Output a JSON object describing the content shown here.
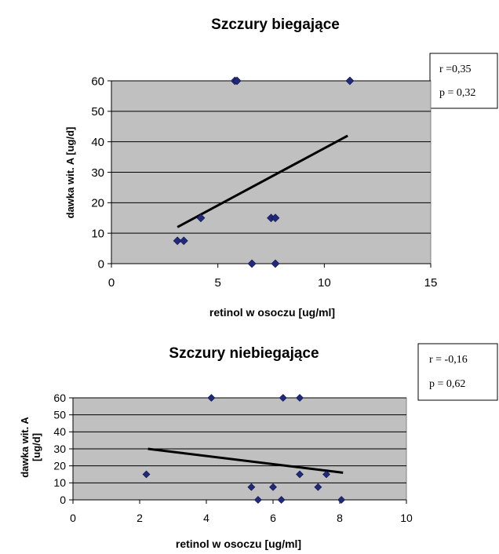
{
  "chart_data": [
    {
      "type": "scatter",
      "title": "Szczury biegające",
      "xlabel": "retinol w osoczu [ug/ml]",
      "ylabel": "dawka wit. A [ug/d]",
      "xlim": [
        0,
        15
      ],
      "ylim": [
        0,
        60
      ],
      "xticks": [
        0,
        5,
        10,
        15
      ],
      "yticks": [
        0,
        10,
        20,
        30,
        40,
        50,
        60
      ],
      "grid": "horizontal",
      "plot_background": "#c0c0c0",
      "marker_color": "#1f2a7a",
      "trend_color": "#000000",
      "points": [
        {
          "x": 5.8,
          "y": 60
        },
        {
          "x": 5.9,
          "y": 60
        },
        {
          "x": 11.2,
          "y": 60
        },
        {
          "x": 4.2,
          "y": 15
        },
        {
          "x": 7.5,
          "y": 15
        },
        {
          "x": 7.7,
          "y": 15
        },
        {
          "x": 3.1,
          "y": 7.5
        },
        {
          "x": 3.4,
          "y": 7.5
        },
        {
          "x": 6.6,
          "y": 0
        },
        {
          "x": 7.7,
          "y": 0
        }
      ],
      "trendline": [
        [
          3.1,
          12
        ],
        [
          11.1,
          42
        ]
      ],
      "stats": [
        "r =0,35",
        "p = 0,32"
      ]
    },
    {
      "type": "scatter",
      "title": "Szczury niebiegające",
      "xlabel": "retinol w osoczu [ug/ml]",
      "ylabel": "dawka wit. A [ug/d]",
      "ylabel_lines": [
        "dawka wit. A",
        "[ug/d]"
      ],
      "xlim": [
        0,
        10
      ],
      "ylim": [
        0,
        60
      ],
      "xticks": [
        0,
        2,
        4,
        6,
        8,
        10
      ],
      "yticks": [
        0,
        10,
        20,
        30,
        40,
        50,
        60
      ],
      "grid": "horizontal",
      "plot_background": "#c0c0c0",
      "marker_color": "#1f2a7a",
      "trend_color": "#000000",
      "points": [
        {
          "x": 4.15,
          "y": 60
        },
        {
          "x": 6.3,
          "y": 60
        },
        {
          "x": 6.8,
          "y": 60
        },
        {
          "x": 2.2,
          "y": 15
        },
        {
          "x": 6.8,
          "y": 15
        },
        {
          "x": 7.6,
          "y": 15
        },
        {
          "x": 5.35,
          "y": 7.5
        },
        {
          "x": 6.0,
          "y": 7.5
        },
        {
          "x": 7.35,
          "y": 7.5
        },
        {
          "x": 5.55,
          "y": 0
        },
        {
          "x": 6.25,
          "y": 0
        },
        {
          "x": 8.05,
          "y": 0
        }
      ],
      "trendline": [
        [
          2.25,
          30
        ],
        [
          8.1,
          16
        ]
      ],
      "stats": [
        "r = -0,16",
        "p = 0,62"
      ]
    }
  ]
}
